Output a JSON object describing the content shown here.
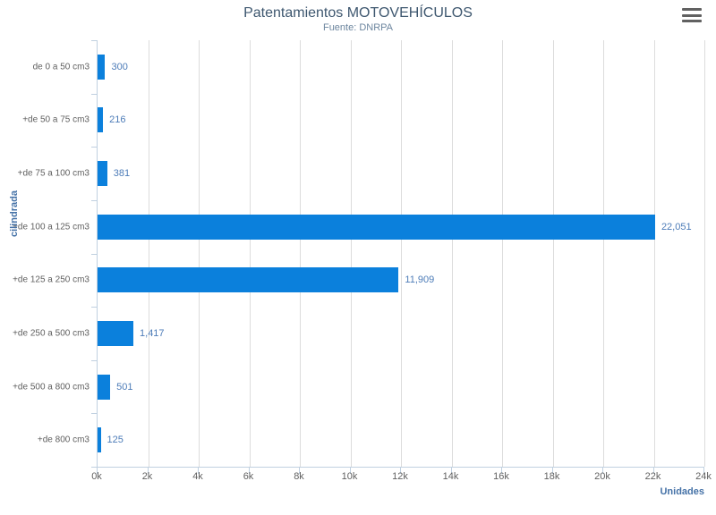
{
  "chart_data": {
    "type": "bar",
    "orientation": "horizontal",
    "title": "Patentamientos MOTOVEHÍCULOS",
    "subtitle": "Fuente: DNRPA",
    "categories": [
      "de 0 a 50 cm3",
      "+de 50 a 75 cm3",
      "+de 75 a 100 cm3",
      "+de 100 a 125 cm3",
      "+de 125 a 250 cm3",
      "+de 250 a 500 cm3",
      "+de 500 a 800 cm3",
      "+de 800 cm3"
    ],
    "values": [
      300,
      216,
      381,
      22051,
      11909,
      1417,
      501,
      125
    ],
    "value_labels": [
      "300",
      "216",
      "381",
      "22,051",
      "11,909",
      "1,417",
      "501",
      "125"
    ],
    "xlabel": "Unidades",
    "ylabel": "cilindrada",
    "xlim": [
      0,
      24000
    ],
    "x_ticks": [
      0,
      2000,
      4000,
      6000,
      8000,
      10000,
      12000,
      14000,
      16000,
      18000,
      20000,
      22000,
      24000
    ],
    "x_tick_labels": [
      "0k",
      "2k",
      "4k",
      "6k",
      "8k",
      "10k",
      "12k",
      "14k",
      "16k",
      "18k",
      "20k",
      "22k",
      "24k"
    ],
    "grid": true,
    "legend": false,
    "colors": {
      "bar": "#0b80dc",
      "title": "#3e576f",
      "subtitle": "#6d869f",
      "axis_title": "#4572a7",
      "value_label": "#4d7cb8",
      "tick_label": "#606060",
      "category_label": "#606060",
      "grid_line": "#dcdcdc",
      "axis_line": "#c0d0e0"
    },
    "menu_icon": "hamburger-menu-icon"
  }
}
